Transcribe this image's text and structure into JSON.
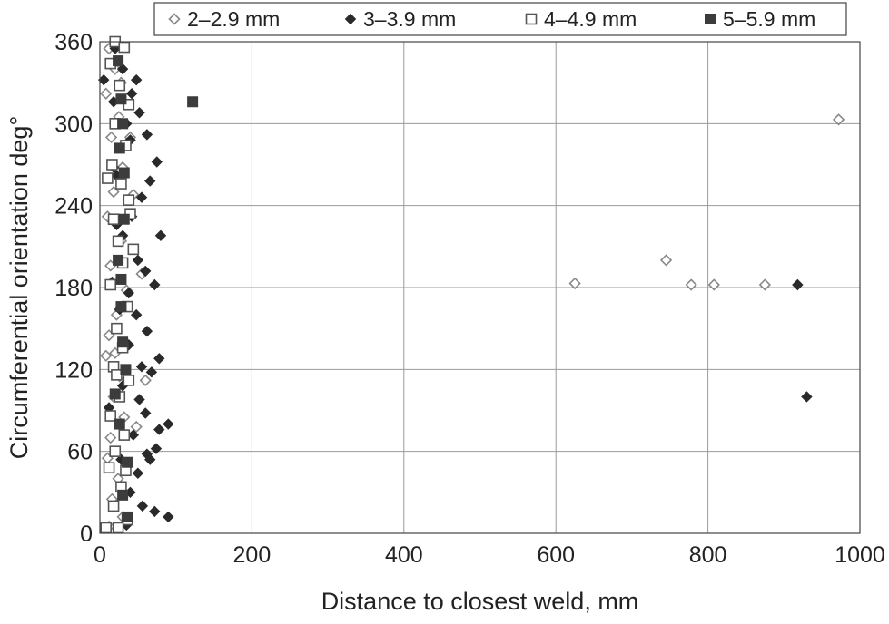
{
  "chart_data": {
    "type": "scatter",
    "title": "",
    "xlabel": "Distance to closest weld, mm",
    "ylabel": "Circumferential orientation deg°",
    "xlim": [
      0,
      1000
    ],
    "ylim": [
      0,
      360
    ],
    "xticks": [
      "0",
      "200",
      "400",
      "600",
      "800",
      "1000"
    ],
    "yticks": [
      "0",
      "60",
      "120",
      "180",
      "240",
      "300",
      "360"
    ],
    "grid": true,
    "legend_position": "top",
    "series": [
      {
        "name": "2–2.9 mm",
        "marker": "diamond-open",
        "color": "#888888",
        "points": [
          [
            12,
            355
          ],
          [
            20,
            340
          ],
          [
            8,
            322
          ],
          [
            25,
            305
          ],
          [
            15,
            290
          ],
          [
            30,
            268
          ],
          [
            18,
            250
          ],
          [
            10,
            232
          ],
          [
            28,
            214
          ],
          [
            14,
            196
          ],
          [
            35,
            178
          ],
          [
            22,
            160
          ],
          [
            12,
            145
          ],
          [
            8,
            130
          ],
          [
            26,
            115
          ],
          [
            18,
            100
          ],
          [
            32,
            85
          ],
          [
            14,
            70
          ],
          [
            10,
            55
          ],
          [
            24,
            40
          ],
          [
            16,
            25
          ],
          [
            30,
            12
          ],
          [
            12,
            5
          ],
          [
            40,
            290
          ],
          [
            55,
            190
          ],
          [
            60,
            112
          ],
          [
            48,
            78
          ],
          [
            20,
            132
          ],
          [
            44,
            248
          ],
          [
            28,
            330
          ],
          [
            625,
            183
          ],
          [
            745,
            200
          ],
          [
            778,
            182
          ],
          [
            808,
            182
          ],
          [
            875,
            182
          ],
          [
            972,
            303
          ]
        ]
      },
      {
        "name": "3–3.9 mm",
        "marker": "diamond",
        "color": "#2a2a2a",
        "points": [
          [
            5,
            332
          ],
          [
            20,
            355
          ],
          [
            30,
            340
          ],
          [
            42,
            322
          ],
          [
            48,
            332
          ],
          [
            18,
            316
          ],
          [
            35,
            300
          ],
          [
            52,
            308
          ],
          [
            40,
            288
          ],
          [
            62,
            292
          ],
          [
            75,
            272
          ],
          [
            66,
            258
          ],
          [
            55,
            246
          ],
          [
            22,
            262
          ],
          [
            42,
            232
          ],
          [
            30,
            218
          ],
          [
            80,
            218
          ],
          [
            50,
            200
          ],
          [
            60,
            192
          ],
          [
            38,
            176
          ],
          [
            72,
            182
          ],
          [
            26,
            164
          ],
          [
            48,
            160
          ],
          [
            62,
            148
          ],
          [
            38,
            138
          ],
          [
            55,
            122
          ],
          [
            68,
            118
          ],
          [
            78,
            128
          ],
          [
            30,
            108
          ],
          [
            52,
            98
          ],
          [
            60,
            88
          ],
          [
            44,
            72
          ],
          [
            78,
            76
          ],
          [
            90,
            80
          ],
          [
            62,
            58
          ],
          [
            74,
            62
          ],
          [
            28,
            54
          ],
          [
            50,
            44
          ],
          [
            40,
            30
          ],
          [
            56,
            20
          ],
          [
            72,
            16
          ],
          [
            90,
            12
          ],
          [
            35,
            6
          ],
          [
            22,
            226
          ],
          [
            16,
            184
          ],
          [
            12,
            92
          ],
          [
            18,
            268
          ],
          [
            66,
            54
          ],
          [
            918,
            182
          ],
          [
            930,
            100
          ]
        ]
      },
      {
        "name": "4–4.9 mm",
        "marker": "square-open",
        "color": "#555555",
        "points": [
          [
            20,
            360
          ],
          [
            32,
            356
          ],
          [
            14,
            344
          ],
          [
            26,
            328
          ],
          [
            38,
            314
          ],
          [
            20,
            300
          ],
          [
            34,
            284
          ],
          [
            16,
            270
          ],
          [
            28,
            256
          ],
          [
            38,
            244
          ],
          [
            18,
            230
          ],
          [
            40,
            234
          ],
          [
            24,
            214
          ],
          [
            30,
            198
          ],
          [
            14,
            182
          ],
          [
            36,
            166
          ],
          [
            22,
            150
          ],
          [
            30,
            136
          ],
          [
            18,
            122
          ],
          [
            38,
            112
          ],
          [
            26,
            100
          ],
          [
            14,
            86
          ],
          [
            32,
            72
          ],
          [
            20,
            60
          ],
          [
            12,
            48
          ],
          [
            28,
            34
          ],
          [
            18,
            20
          ],
          [
            36,
            10
          ],
          [
            8,
            4
          ],
          [
            24,
            4
          ],
          [
            44,
            208
          ],
          [
            10,
            260
          ],
          [
            22,
            116
          ],
          [
            34,
            46
          ]
        ]
      },
      {
        "name": "5–5.9 mm",
        "marker": "square",
        "color": "#3c3c3c",
        "points": [
          [
            122,
            316
          ],
          [
            28,
            318
          ],
          [
            30,
            300
          ],
          [
            26,
            282
          ],
          [
            32,
            264
          ],
          [
            24,
            200
          ],
          [
            28,
            186
          ],
          [
            30,
            140
          ],
          [
            26,
            80
          ],
          [
            36,
            52
          ],
          [
            30,
            28
          ],
          [
            24,
            346
          ],
          [
            32,
            230
          ],
          [
            28,
            166
          ],
          [
            34,
            120
          ],
          [
            20,
            102
          ],
          [
            36,
            12
          ]
        ]
      }
    ]
  }
}
